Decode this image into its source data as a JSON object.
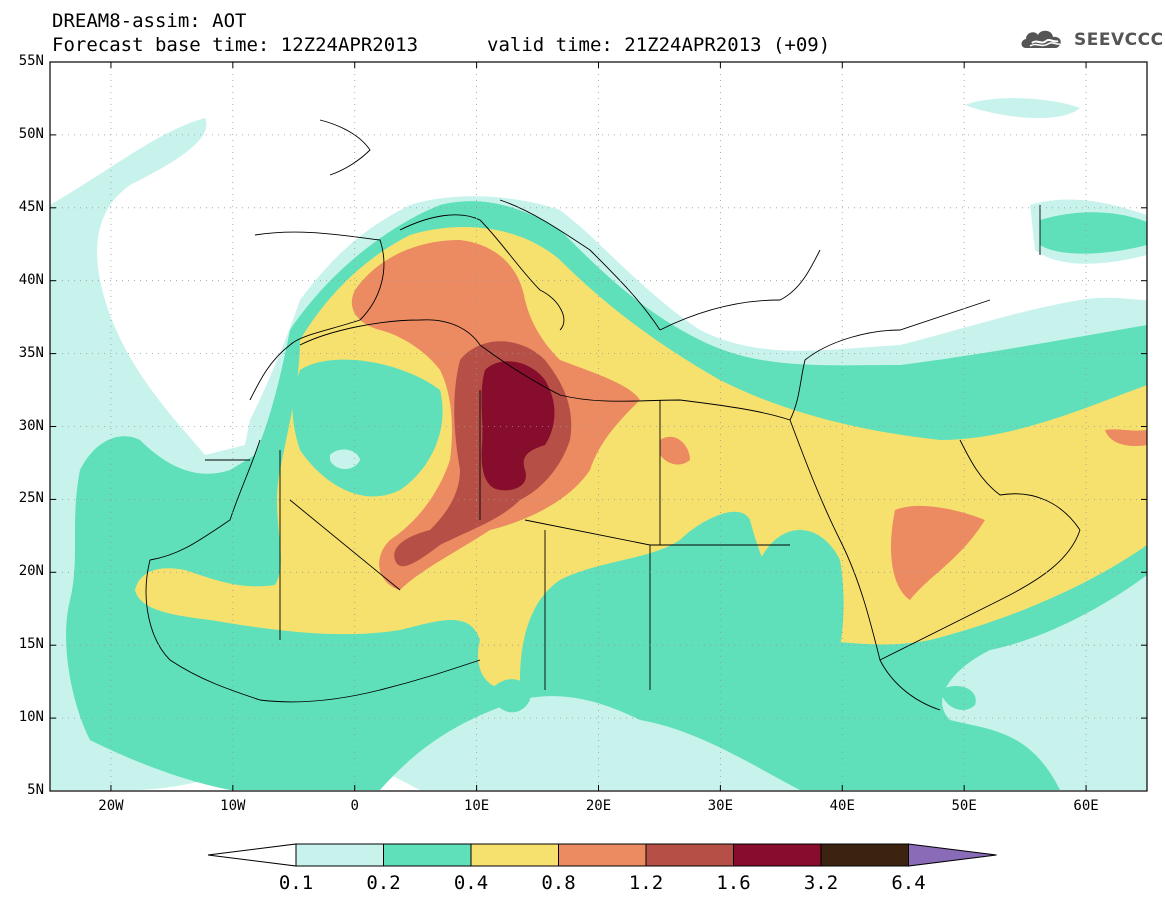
{
  "header": {
    "line1": "DREAM8-assim: AOT",
    "line2_left": "Forecast base time: 12Z24APR2013",
    "line2_right": "valid time: 21Z24APR2013 (+09)"
  },
  "logo": {
    "text": "SEEVCCC",
    "icon": "cloud-icon"
  },
  "map": {
    "lat_labels": [
      "55N",
      "50N",
      "45N",
      "40N",
      "35N",
      "30N",
      "25N",
      "20N",
      "15N",
      "10N",
      "5N"
    ],
    "lon_labels": [
      "20W",
      "10W",
      "0",
      "10E",
      "20E",
      "30E",
      "40E",
      "50E",
      "60E"
    ],
    "lat_range": [
      5,
      55
    ],
    "lon_range": [
      -25,
      65
    ],
    "grid": "dotted"
  },
  "colorbar": {
    "labels": [
      "0.1",
      "0.2",
      "0.4",
      "0.8",
      "1.2",
      "1.6",
      "3.2",
      "6.4"
    ],
    "colors": [
      "#ffffff",
      "#c8f3ec",
      "#5fe0bb",
      "#f7e16e",
      "#ec8b62",
      "#b65047",
      "#870d2c",
      "#3b2310",
      "#8a6bb8"
    ]
  }
}
